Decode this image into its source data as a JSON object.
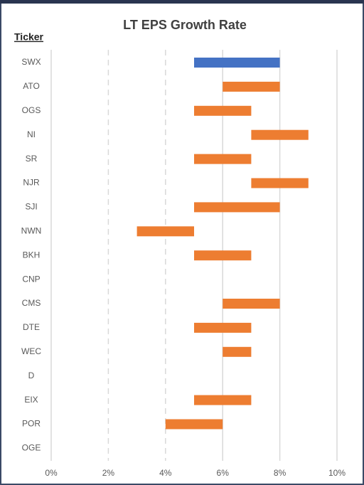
{
  "chart_data": {
    "type": "range-bar",
    "title": "LT EPS Growth Rate",
    "y_label": "Ticker",
    "categories": [
      "SWX",
      "ATO",
      "OGS",
      "NI",
      "SR",
      "NJR",
      "SJI",
      "NWN",
      "BKH",
      "CNP",
      "CMS",
      "DTE",
      "WEC",
      "D",
      "EIX",
      "POR",
      "OGE"
    ],
    "low": [
      5,
      6,
      5,
      7,
      5,
      7,
      5,
      3,
      5,
      null,
      6,
      5,
      6,
      null,
      5,
      4,
      null
    ],
    "high": [
      8,
      8,
      7,
      9,
      7,
      9,
      8,
      5,
      7,
      null,
      8,
      7,
      7,
      null,
      7,
      6,
      null
    ],
    "colors": [
      "#4472c4",
      "#ed7d31",
      "#ed7d31",
      "#ed7d31",
      "#ed7d31",
      "#ed7d31",
      "#ed7d31",
      "#ed7d31",
      "#ed7d31",
      "#ed7d31",
      "#ed7d31",
      "#ed7d31",
      "#ed7d31",
      "#ed7d31",
      "#ed7d31",
      "#ed7d31",
      "#ed7d31"
    ],
    "xlim": [
      0,
      10
    ],
    "xticks": [
      {
        "value": 0,
        "label": "0%"
      },
      {
        "value": 2,
        "label": "2%"
      },
      {
        "value": 4,
        "label": "4%"
      },
      {
        "value": 6,
        "label": "6%"
      },
      {
        "value": 8,
        "label": "8%"
      },
      {
        "value": 10,
        "label": "10%"
      }
    ],
    "grid": true
  }
}
